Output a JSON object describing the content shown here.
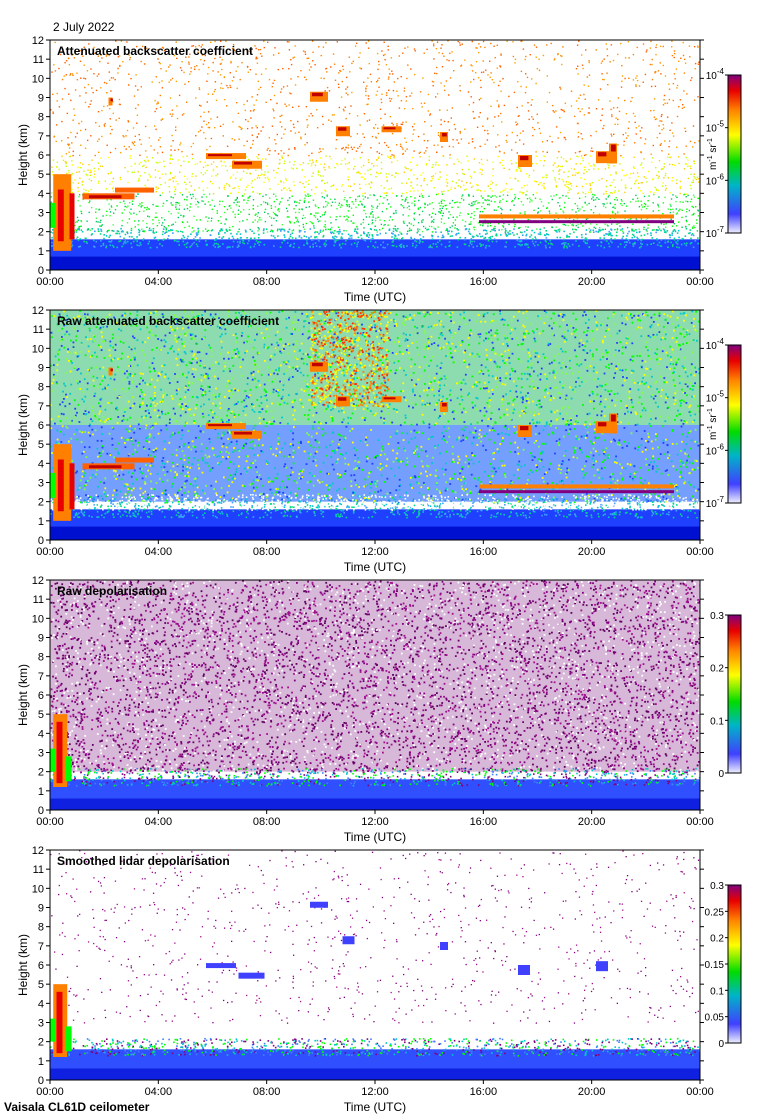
{
  "date": "2 July 2022",
  "instrument": "Vaisala CL61D ceilometer",
  "colors": [
    "#e8e8ff",
    "#0000ff",
    "#00c8c8",
    "#00ff00",
    "#ffff00",
    "#ff8000",
    "#ff0000",
    "#80007f"
  ],
  "chart_data": [
    {
      "type": "heatmap",
      "title": "Attenuated backscatter coefficient",
      "xlabel": "Time (UTC)",
      "ylabel": "Height (km)",
      "x_ticks": [
        "00:00",
        "04:00",
        "08:00",
        "12:00",
        "16:00",
        "20:00",
        "00:00"
      ],
      "y_ticks": [
        "0",
        "1",
        "2",
        "3",
        "4",
        "5",
        "6",
        "7",
        "8",
        "9",
        "10",
        "11",
        "12"
      ],
      "ylim": [
        0,
        12
      ],
      "colorbar": {
        "scale": "log",
        "range": [
          1e-07,
          0.0001
        ],
        "ticks": [
          {
            "base": "10",
            "exp": "-7"
          },
          {
            "base": "10",
            "exp": "-6"
          },
          {
            "base": "10",
            "exp": "-5"
          },
          {
            "base": "10",
            "exp": "-4"
          }
        ],
        "unit": {
          "m": "m",
          "mexp": "-1",
          "sr": "sr",
          "srexp": "-1"
        }
      }
    },
    {
      "type": "heatmap",
      "title": "Raw attenuated backscatter coefficient",
      "xlabel": "Time (UTC)",
      "ylabel": "Height (km)",
      "x_ticks": [
        "00:00",
        "04:00",
        "08:00",
        "12:00",
        "16:00",
        "20:00",
        "00:00"
      ],
      "y_ticks": [
        "0",
        "1",
        "2",
        "3",
        "4",
        "5",
        "6",
        "7",
        "8",
        "9",
        "10",
        "11",
        "12"
      ],
      "ylim": [
        0,
        12
      ],
      "colorbar": {
        "scale": "log",
        "range": [
          1e-07,
          0.0001
        ],
        "ticks": [
          {
            "base": "10",
            "exp": "-7"
          },
          {
            "base": "10",
            "exp": "-6"
          },
          {
            "base": "10",
            "exp": "-5"
          },
          {
            "base": "10",
            "exp": "-4"
          }
        ],
        "unit": {
          "m": "m",
          "mexp": "-1",
          "sr": "sr",
          "srexp": "-1"
        }
      }
    },
    {
      "type": "heatmap",
      "title": "Raw depolarisation",
      "xlabel": "Time (UTC)",
      "ylabel": "Height (km)",
      "x_ticks": [
        "00:00",
        "04:00",
        "08:00",
        "12:00",
        "16:00",
        "20:00",
        "00:00"
      ],
      "y_ticks": [
        "0",
        "1",
        "2",
        "3",
        "4",
        "5",
        "6",
        "7",
        "8",
        "9",
        "10",
        "11",
        "12"
      ],
      "ylim": [
        0,
        12
      ],
      "colorbar": {
        "scale": "linear",
        "range": [
          0,
          0.3
        ],
        "ticks": [
          {
            "base": "0"
          },
          {
            "base": "0.1"
          },
          {
            "base": "0.2"
          },
          {
            "base": "0.3"
          }
        ]
      }
    },
    {
      "type": "heatmap",
      "title": "Smoothed lidar depolarisation",
      "xlabel": "Time (UTC)",
      "ylabel": "Height (km)",
      "x_ticks": [
        "00:00",
        "04:00",
        "08:00",
        "12:00",
        "16:00",
        "20:00",
        "00:00"
      ],
      "y_ticks": [
        "0",
        "1",
        "2",
        "3",
        "4",
        "5",
        "6",
        "7",
        "8",
        "9",
        "10",
        "11",
        "12"
      ],
      "ylim": [
        0,
        12
      ],
      "colorbar": {
        "scale": "linear",
        "range": [
          0,
          0.3
        ],
        "ticks": [
          {
            "base": "0"
          },
          {
            "base": "0.05"
          },
          {
            "base": "0.1"
          },
          {
            "base": "0.15"
          },
          {
            "base": "0.2"
          },
          {
            "base": "0.25"
          },
          {
            "base": "0.3"
          }
        ]
      }
    }
  ]
}
